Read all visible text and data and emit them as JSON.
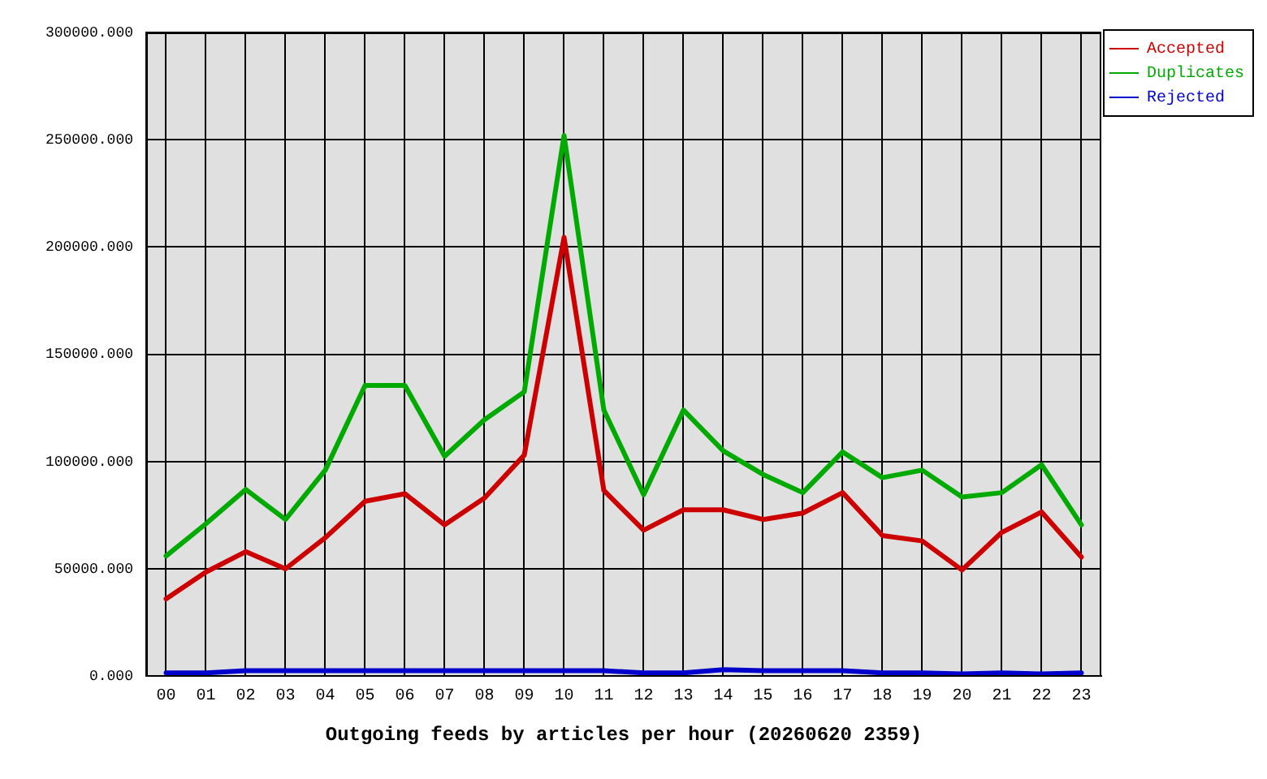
{
  "chart_data": {
    "type": "line",
    "title": "Outgoing feeds by articles per hour (20260620 2359)",
    "categories": [
      "00",
      "01",
      "02",
      "03",
      "04",
      "05",
      "06",
      "07",
      "08",
      "09",
      "10",
      "11",
      "12",
      "13",
      "14",
      "15",
      "16",
      "17",
      "18",
      "19",
      "20",
      "21",
      "22",
      "23"
    ],
    "series": [
      {
        "name": "Accepted",
        "color": "#cc0000",
        "values": [
          36000,
          48500,
          58000,
          50000,
          64500,
          81500,
          85000,
          70500,
          83000,
          103000,
          204500,
          86500,
          68000,
          77500,
          77500,
          73000,
          76000,
          85500,
          65500,
          63000,
          49500,
          67000,
          76500,
          55500
        ]
      },
      {
        "name": "Duplicates",
        "color": "#00aa00",
        "values": [
          56000,
          71000,
          87000,
          73000,
          96000,
          135500,
          135500,
          102500,
          119500,
          132500,
          252000,
          124000,
          84500,
          124000,
          105000,
          94000,
          85500,
          104500,
          92500,
          96000,
          83500,
          85500,
          98500,
          70500
        ]
      },
      {
        "name": "Rejected",
        "color": "#0000cc",
        "values": [
          1500,
          1500,
          2500,
          2500,
          2500,
          2500,
          2500,
          2500,
          2500,
          2500,
          2500,
          2500,
          1500,
          1500,
          3000,
          2500,
          2500,
          2500,
          1500,
          1500,
          1000,
          1500,
          1000,
          1500
        ]
      }
    ],
    "ylim": [
      0,
      300000
    ],
    "yticks": [
      {
        "value": 0,
        "label": "0.000"
      },
      {
        "value": 50000,
        "label": "50000.000"
      },
      {
        "value": 100000,
        "label": "100000.000"
      },
      {
        "value": 150000,
        "label": "150000.000"
      },
      {
        "value": 200000,
        "label": "200000.000"
      },
      {
        "value": 250000,
        "label": "250000.000"
      },
      {
        "value": 300000,
        "label": "300000.000"
      }
    ],
    "grid": true,
    "legend": "top right",
    "marker": "none",
    "line_style": "solid"
  }
}
